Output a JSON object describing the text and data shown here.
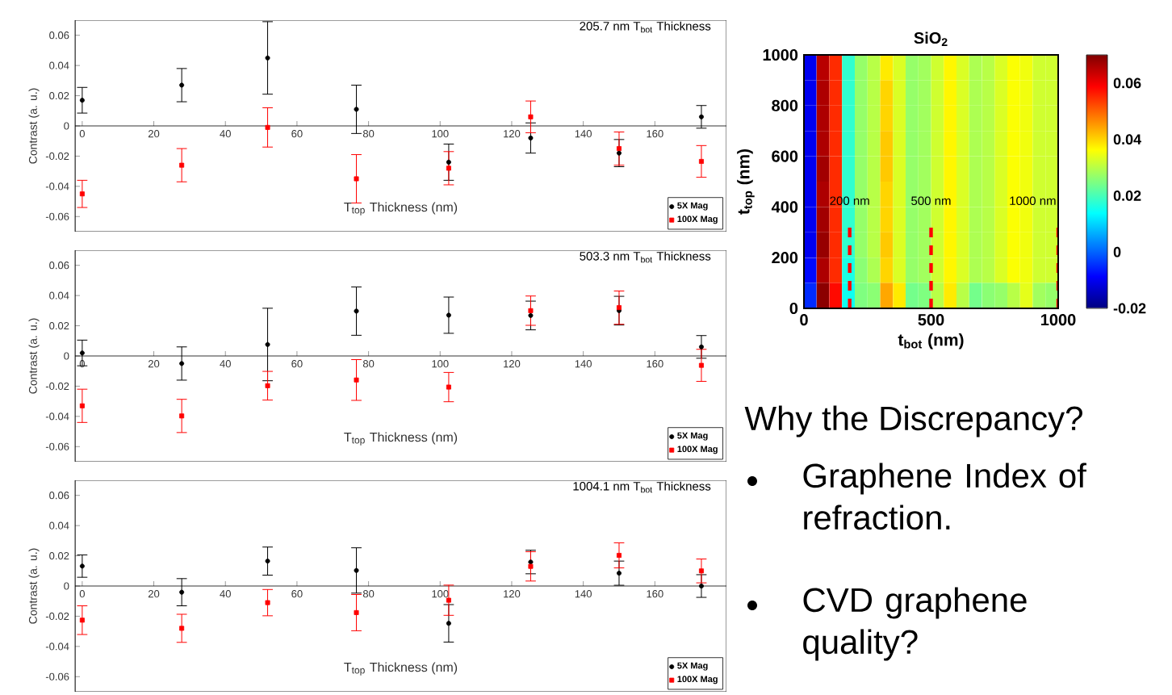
{
  "chart_data": [
    {
      "type": "scatter",
      "title": "205.7 nm T$_{bot}$ Thickness",
      "xlabel": "T$_{top}$ Thickness (nm)",
      "ylabel": "Contrast (a. u.)",
      "xlim": [
        -2,
        180
      ],
      "xticks": [
        0,
        20,
        40,
        60,
        80,
        100,
        120,
        140,
        160
      ],
      "ylim": [
        -0.07,
        0.07
      ],
      "yticks": [
        -0.06,
        -0.04,
        -0.02,
        0,
        0.02,
        0.04,
        0.06
      ],
      "legend": "bottom right",
      "series": [
        {
          "name": "5X Mag",
          "color": "#000000",
          "marker": "circle",
          "x": [
            0,
            27.8,
            51.8,
            76.6,
            102.4,
            125.3,
            150,
            173
          ],
          "values": [
            0.017,
            0.027,
            0.045,
            0.011,
            -0.024,
            -0.008,
            -0.018,
            0.006
          ],
          "errors": [
            0.0085,
            0.011,
            0.024,
            0.016,
            0.012,
            0.01,
            0.009,
            0.0075
          ]
        },
        {
          "name": "100X Mag",
          "color": "#ff0000",
          "marker": "square",
          "x": [
            0,
            27.8,
            51.8,
            76.6,
            102.4,
            125.3,
            150,
            173
          ],
          "values": [
            -0.045,
            -0.026,
            -0.001,
            -0.035,
            -0.028,
            0.006,
            -0.015,
            -0.0235
          ],
          "errors": [
            0.009,
            0.011,
            0.013,
            0.016,
            0.011,
            0.0105,
            0.011,
            0.0105
          ]
        }
      ]
    },
    {
      "type": "scatter",
      "title": "503.3 nm T$_{bot}$ Thickness",
      "xlabel": "T$_{top}$ Thickness (nm)",
      "ylabel": "Contrast (a. u.)",
      "xlim": [
        -2,
        180
      ],
      "xticks": [
        0,
        20,
        40,
        60,
        80,
        100,
        120,
        140,
        160
      ],
      "ylim": [
        -0.07,
        0.07
      ],
      "yticks": [
        -0.06,
        -0.04,
        -0.02,
        0,
        0.02,
        0.04,
        0.06
      ],
      "legend": "bottom right",
      "series": [
        {
          "name": "5X Mag",
          "color": "#000000",
          "marker": "circle",
          "x": [
            0,
            27.8,
            51.8,
            76.6,
            102.4,
            125.3,
            150,
            173
          ],
          "values": [
            0.002,
            -0.005,
            0.0076,
            0.0297,
            0.027,
            0.0268,
            0.03,
            0.006
          ],
          "errors": [
            0.0085,
            0.011,
            0.024,
            0.016,
            0.012,
            0.0095,
            0.0095,
            0.0075
          ]
        },
        {
          "name": "100X Mag",
          "color": "#ff0000",
          "marker": "square",
          "x": [
            0,
            27.8,
            51.8,
            76.6,
            102.4,
            125.3,
            150,
            173
          ],
          "values": [
            -0.033,
            -0.0397,
            -0.0197,
            -0.0159,
            -0.0206,
            0.03,
            0.032,
            -0.0062
          ],
          "errors": [
            0.011,
            0.011,
            0.0095,
            0.0135,
            0.0097,
            0.0097,
            0.011,
            0.0106
          ]
        }
      ]
    },
    {
      "type": "scatter",
      "title": "1004.1 nm T$_{bot}$ Thickness",
      "xlabel": "T$_{top}$ Thickness (nm)",
      "ylabel": "Contrast (a. u.)",
      "xlim": [
        -2,
        180
      ],
      "xticks": [
        0,
        20,
        40,
        60,
        80,
        100,
        120,
        140,
        160
      ],
      "ylim": [
        -0.07,
        0.07
      ],
      "yticks": [
        -0.06,
        -0.04,
        -0.02,
        0,
        0.02,
        0.04,
        0.06
      ],
      "legend": "bottom right",
      "series": [
        {
          "name": "5X Mag",
          "color": "#000000",
          "marker": "circle",
          "x": [
            0,
            27.8,
            51.8,
            76.6,
            102.4,
            125.3,
            150,
            173
          ],
          "values": [
            0.0132,
            -0.0041,
            0.0165,
            0.0103,
            -0.0247,
            0.0159,
            0.0085,
            0.0
          ],
          "errors": [
            0.0074,
            0.009,
            0.0093,
            0.015,
            0.0124,
            0.0078,
            0.008,
            0.0075
          ]
        },
        {
          "name": "100X Mag",
          "color": "#ff0000",
          "marker": "square",
          "x": [
            0,
            27.8,
            51.8,
            76.6,
            102.4,
            125.3,
            150,
            173
          ],
          "values": [
            -0.0226,
            -0.028,
            -0.011,
            -0.0176,
            -0.0094,
            0.013,
            0.0203,
            0.01
          ],
          "errors": [
            0.0095,
            0.0093,
            0.0087,
            0.012,
            0.01,
            0.0097,
            0.0083,
            0.0079
          ]
        }
      ]
    },
    {
      "type": "heatmap",
      "title": "SiO$_{2}$",
      "xlabel": "t$_{bot}$ (nm)",
      "ylabel": "t$_{top}$ (nm)",
      "xlim": [
        0,
        1000
      ],
      "ylim": [
        0,
        1000
      ],
      "xticks": [
        0,
        500,
        1000
      ],
      "yticks": [
        0,
        200,
        400,
        600,
        800,
        1000
      ],
      "clim": [
        -0.02,
        0.07
      ],
      "cticks": [
        -0.02,
        0,
        0.02,
        0.04,
        0.06
      ],
      "x": [
        25,
        75,
        125,
        175,
        225,
        275,
        325,
        375,
        425,
        475,
        525,
        575,
        625,
        675,
        725,
        775,
        825,
        875,
        925,
        975
      ],
      "cells": [
        [
          -0.01,
          0.065,
          0.055,
          0.018,
          0.027,
          0.03,
          0.038,
          0.033,
          0.027,
          0.028,
          0.032,
          0.037,
          0.033,
          0.029,
          0.03,
          0.033,
          0.036,
          0.035,
          0.032,
          0.032
        ],
        [
          -0.01,
          0.066,
          0.055,
          0.018,
          0.027,
          0.03,
          0.04,
          0.033,
          0.027,
          0.028,
          0.032,
          0.037,
          0.033,
          0.029,
          0.03,
          0.033,
          0.036,
          0.035,
          0.032,
          0.032
        ],
        [
          -0.01,
          0.066,
          0.055,
          0.018,
          0.027,
          0.03,
          0.04,
          0.033,
          0.027,
          0.028,
          0.032,
          0.037,
          0.033,
          0.029,
          0.03,
          0.033,
          0.036,
          0.035,
          0.032,
          0.032
        ],
        [
          -0.01,
          0.066,
          0.055,
          0.018,
          0.027,
          0.03,
          0.041,
          0.033,
          0.027,
          0.028,
          0.032,
          0.037,
          0.033,
          0.029,
          0.03,
          0.033,
          0.036,
          0.035,
          0.032,
          0.032
        ],
        [
          -0.01,
          0.067,
          0.055,
          0.018,
          0.027,
          0.03,
          0.041,
          0.033,
          0.027,
          0.028,
          0.032,
          0.037,
          0.033,
          0.029,
          0.03,
          0.033,
          0.036,
          0.035,
          0.032,
          0.032
        ],
        [
          -0.01,
          0.066,
          0.055,
          0.018,
          0.027,
          0.03,
          0.04,
          0.033,
          0.027,
          0.028,
          0.032,
          0.037,
          0.033,
          0.029,
          0.03,
          0.033,
          0.036,
          0.035,
          0.032,
          0.032
        ],
        [
          -0.01,
          0.067,
          0.055,
          0.018,
          0.027,
          0.03,
          0.04,
          0.033,
          0.027,
          0.028,
          0.032,
          0.037,
          0.033,
          0.029,
          0.03,
          0.033,
          0.036,
          0.035,
          0.032,
          0.032
        ],
        [
          -0.01,
          0.068,
          0.055,
          0.018,
          0.027,
          0.03,
          0.041,
          0.033,
          0.027,
          0.028,
          0.032,
          0.037,
          0.033,
          0.029,
          0.03,
          0.033,
          0.036,
          0.035,
          0.032,
          0.032
        ],
        [
          -0.008,
          0.066,
          0.055,
          0.016,
          0.026,
          0.029,
          0.04,
          0.033,
          0.027,
          0.028,
          0.032,
          0.037,
          0.033,
          0.029,
          0.03,
          0.033,
          0.036,
          0.035,
          0.032,
          0.032
        ],
        [
          -0.005,
          0.069,
          0.058,
          0.015,
          0.025,
          0.026,
          0.044,
          0.038,
          0.024,
          0.025,
          0.03,
          0.038,
          0.03,
          0.024,
          0.026,
          0.027,
          0.03,
          0.034,
          0.028,
          0.027
        ]
      ],
      "ref_lines": [
        {
          "axis": "x",
          "value": 180,
          "label": "200 nm",
          "color": "#ff0000",
          "line_style": "dashed"
        },
        {
          "axis": "x",
          "value": 500,
          "label": "500 nm",
          "color": "#ff0000",
          "line_style": "dashed"
        },
        {
          "axis": "x",
          "value": 1000,
          "label": "1000 nm",
          "color": "#ff0000",
          "line_style": "dashed"
        }
      ]
    },
    {
      "type": "other",
      "annotations": [
        "Why the Discrepancy?",
        "Graphene Index of refraction.",
        "CVD graphene quality?"
      ]
    }
  ]
}
